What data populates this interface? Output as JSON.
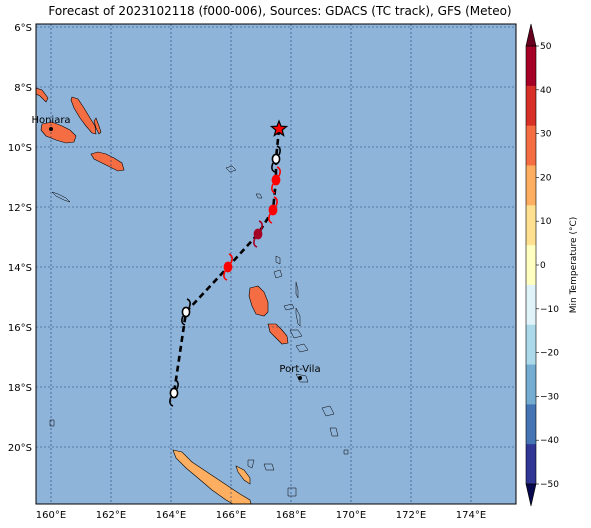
{
  "title": "Forecast of 2023102118 (f000-006), Sources: GDACS (TC track), GFS (Meteo)",
  "lon_ticks": [
    "160°E",
    "162°E",
    "164°E",
    "166°E",
    "168°E",
    "170°E",
    "172°E",
    "174°E"
  ],
  "lat_ticks": [
    "6°S",
    "8°S",
    "10°S",
    "12°S",
    "14°S",
    "16°S",
    "18°S",
    "20°S"
  ],
  "places": [
    {
      "name": "Honiara",
      "lon": 160.0,
      "lat": -9.4
    },
    {
      "name": "Port-Vila",
      "lon": 168.3,
      "lat": -17.7
    }
  ],
  "colorbar": {
    "label": "Min Temperature (°C)",
    "ticks": [
      "50",
      "40",
      "30",
      "20",
      "10",
      "0",
      "−10",
      "−20",
      "−30",
      "−40",
      "−50"
    ],
    "levels": [
      50,
      40,
      30,
      20,
      10,
      0,
      -10,
      -20,
      -30,
      -40,
      -50
    ],
    "colors": [
      "#a50026",
      "#d73027",
      "#f46d43",
      "#fdae61",
      "#fee090",
      "#ffffbf",
      "#e0f3f8",
      "#abd9e9",
      "#74add1",
      "#4575b4",
      "#313695"
    ]
  },
  "colors": {
    "ocean": "#8fb4d9",
    "land_warm": "#f46d43",
    "land_mild": "#fdae61",
    "track": "#000000",
    "storm_red": "#ff0000",
    "storm_darkred": "#a50026",
    "storm_white": "#ffffff"
  },
  "chart_data": {
    "type": "map",
    "extent": {
      "lon": [
        159.5,
        175.5
      ],
      "lat": [
        -21.9,
        -5.9
      ]
    },
    "grid": true,
    "track": [
      {
        "lon": 167.6,
        "lat": -9.4,
        "marker": "star",
        "category": "current"
      },
      {
        "lon": 167.5,
        "lat": -10.4,
        "marker": "storm-icon",
        "category": "white"
      },
      {
        "lon": 167.5,
        "lat": -11.1,
        "marker": "storm-icon",
        "category": "red"
      },
      {
        "lon": 167.4,
        "lat": -12.1,
        "marker": "storm-icon",
        "category": "red"
      },
      {
        "lon": 166.9,
        "lat": -12.9,
        "marker": "storm-icon",
        "category": "darkred"
      },
      {
        "lon": 165.9,
        "lat": -14.0,
        "marker": "storm-icon",
        "category": "red"
      },
      {
        "lon": 164.5,
        "lat": -15.5,
        "marker": "storm-icon",
        "category": "white"
      },
      {
        "lon": 164.1,
        "lat": -18.2,
        "marker": "storm-icon",
        "category": "white"
      }
    ]
  }
}
